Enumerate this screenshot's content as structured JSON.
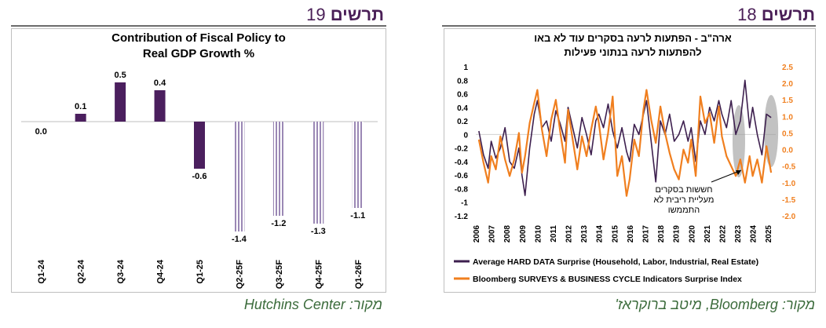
{
  "left_panel": {
    "header_word": "תרשים",
    "header_number": "19",
    "source": "מקור: Hutchins Center"
  },
  "right_panel": {
    "header_word": "תרשים",
    "header_number": "18",
    "source": "מקור: Bloomberg, מיטב ברוקראז'"
  },
  "chart_data": [
    {
      "type": "bar",
      "title": "Contribution of Fiscal Policy to Real GDP Growth %",
      "title_lines": [
        "Contribution of Fiscal Policy to",
        "Real GDP Growth %"
      ],
      "categories": [
        "Q1-24",
        "Q2-24",
        "Q3-24",
        "Q4-24",
        "Q1-25",
        "Q2-25F",
        "Q3-25F",
        "Q4-25F",
        "Q1-26F"
      ],
      "values": [
        0.0,
        0.1,
        0.5,
        0.4,
        -0.6,
        -1.4,
        -1.2,
        -1.3,
        -1.1
      ],
      "value_labels": [
        "0.0",
        "0.1",
        "0.5",
        "0.4",
        "-0.6",
        "-1.4",
        "-1.2",
        "-1.3",
        "-1.1"
      ],
      "forecast_from_index": 5,
      "colors": {
        "actual": "#4b1f5e",
        "forecast": "#9b88b5"
      }
    },
    {
      "type": "line",
      "title": "ארה\"ב - הפתעות לרעה בסקרים עוד לא באו להפתעות לרעה בנתוני פעילות",
      "title_lines": [
        "ארה\"ב - הפתעות לרעה בסקרים  עוד לא באו",
        "להפתעות לרעה בנתוני  פעילות"
      ],
      "x_ticks": [
        "2006",
        "2007",
        "2008",
        "2009",
        "2010",
        "2011",
        "2012",
        "2013",
        "2014",
        "2015",
        "2016",
        "2017",
        "2018",
        "2019",
        "2020",
        "2021",
        "2022",
        "2023",
        "2024",
        "2025"
      ],
      "y_left_ticks": [
        "1",
        "0.8",
        "0.6",
        "0.4",
        "0.2",
        "0",
        "-0.2",
        "-0.4",
        "-0.6",
        "-0.8",
        "-1",
        "-1.2"
      ],
      "y_right_ticks": [
        "2.5",
        "2.0",
        "1.5",
        "1.0",
        "0.5",
        "0.0",
        "-0.5",
        "-1.0",
        "-1.5",
        "-2.0"
      ],
      "ylim_left": [
        -1.2,
        1
      ],
      "ylim_right": [
        -2.0,
        2.5
      ],
      "annotation_lines": [
        "חששות בסקרים",
        "מעליית ריבית לא",
        "התממשו"
      ],
      "series": [
        {
          "name": "Average HARD DATA Surprise (Household, Labor, Industrial, Real Estate)",
          "axis": "left",
          "color": "#3d1f4e",
          "x": [
            2006.2,
            2006.5,
            2006.8,
            2007.0,
            2007.3,
            2007.6,
            2007.9,
            2008.2,
            2008.5,
            2008.8,
            2009.0,
            2009.2,
            2009.5,
            2009.8,
            2010.0,
            2010.3,
            2010.6,
            2010.9,
            2011.2,
            2011.5,
            2011.8,
            2012.0,
            2012.3,
            2012.6,
            2012.9,
            2013.2,
            2013.5,
            2013.8,
            2014.0,
            2014.3,
            2014.6,
            2014.9,
            2015.2,
            2015.5,
            2015.8,
            2016.0,
            2016.3,
            2016.6,
            2016.9,
            2017.1,
            2017.4,
            2017.7,
            2018.0,
            2018.3,
            2018.6,
            2018.9,
            2019.2,
            2019.5,
            2019.8,
            2020.0,
            2020.3,
            2020.6,
            2020.9,
            2021.2,
            2021.5,
            2021.8,
            2022.0,
            2022.3,
            2022.6,
            2022.9,
            2023.2,
            2023.5,
            2023.8,
            2024.0,
            2024.3,
            2024.6,
            2024.9,
            2025.2
          ],
          "y": [
            0.05,
            -0.3,
            -0.5,
            -0.1,
            -0.35,
            -0.2,
            0.1,
            -0.4,
            -0.5,
            -0.2,
            -0.6,
            -0.9,
            -0.2,
            0.3,
            0.5,
            0.1,
            0.2,
            -0.1,
            0.35,
            0.15,
            -0.1,
            0.4,
            0.1,
            -0.2,
            0.25,
            0.0,
            -0.3,
            0.2,
            0.3,
            0.1,
            0.45,
            0.05,
            -0.2,
            0.1,
            -0.25,
            -0.4,
            0.15,
            0.0,
            0.3,
            0.5,
            -0.1,
            -0.7,
            0.2,
            0.0,
            0.3,
            -0.1,
            0.0,
            0.2,
            -0.1,
            0.1,
            -0.4,
            0.2,
            0.0,
            0.4,
            0.2,
            0.5,
            0.3,
            0.1,
            0.5,
            0.0,
            0.2,
            0.8,
            0.1,
            0.4,
            0.0,
            -0.3,
            0.3,
            0.25
          ]
        },
        {
          "name": "Bloomberg  SURVEYS & BUSINESS CYCLE Indicators Surprise Index",
          "axis": "right",
          "color": "#f07f1f",
          "x": [
            2006.2,
            2006.5,
            2006.8,
            2007.0,
            2007.3,
            2007.6,
            2007.9,
            2008.2,
            2008.5,
            2008.8,
            2009.0,
            2009.2,
            2009.5,
            2009.8,
            2010.0,
            2010.3,
            2010.6,
            2010.9,
            2011.2,
            2011.5,
            2011.8,
            2012.0,
            2012.3,
            2012.6,
            2012.9,
            2013.2,
            2013.5,
            2013.8,
            2014.0,
            2014.3,
            2014.6,
            2014.9,
            2015.2,
            2015.5,
            2015.8,
            2016.0,
            2016.3,
            2016.6,
            2016.9,
            2017.1,
            2017.4,
            2017.7,
            2018.0,
            2018.3,
            2018.6,
            2018.9,
            2019.2,
            2019.5,
            2019.8,
            2020.0,
            2020.3,
            2020.6,
            2020.9,
            2021.2,
            2021.5,
            2021.8,
            2022.0,
            2022.3,
            2022.6,
            2022.9,
            2023.2,
            2023.5,
            2023.8,
            2024.0,
            2024.3,
            2024.6,
            2024.9,
            2025.2
          ],
          "y": [
            0.3,
            -0.4,
            -1.0,
            -0.2,
            -0.6,
            0.4,
            -0.3,
            -0.8,
            -0.3,
            0.5,
            -0.7,
            -0.2,
            0.8,
            1.4,
            1.8,
            0.6,
            -0.2,
            0.9,
            1.5,
            0.5,
            -0.4,
            1.2,
            0.3,
            -0.6,
            0.4,
            -0.2,
            0.6,
            1.3,
            0.8,
            -0.3,
            0.5,
            1.6,
            -0.8,
            -0.2,
            -1.4,
            -0.9,
            0.3,
            -0.2,
            1.2,
            1.8,
            0.9,
            0.2,
            1.3,
            0.5,
            -0.1,
            -0.6,
            -0.9,
            0.0,
            -0.4,
            0.3,
            -0.8,
            1.6,
            0.8,
            1.1,
            0.2,
            1.3,
            0.4,
            -0.2,
            -0.5,
            -0.8,
            -0.3,
            -1.0,
            -0.2,
            -0.8,
            -0.3,
            -1.0,
            0.1,
            -0.7
          ]
        }
      ],
      "colors": {
        "hard_data": "#3d1f4e",
        "surveys": "#f07f1f",
        "highlight": "#9a9a9a"
      }
    }
  ]
}
